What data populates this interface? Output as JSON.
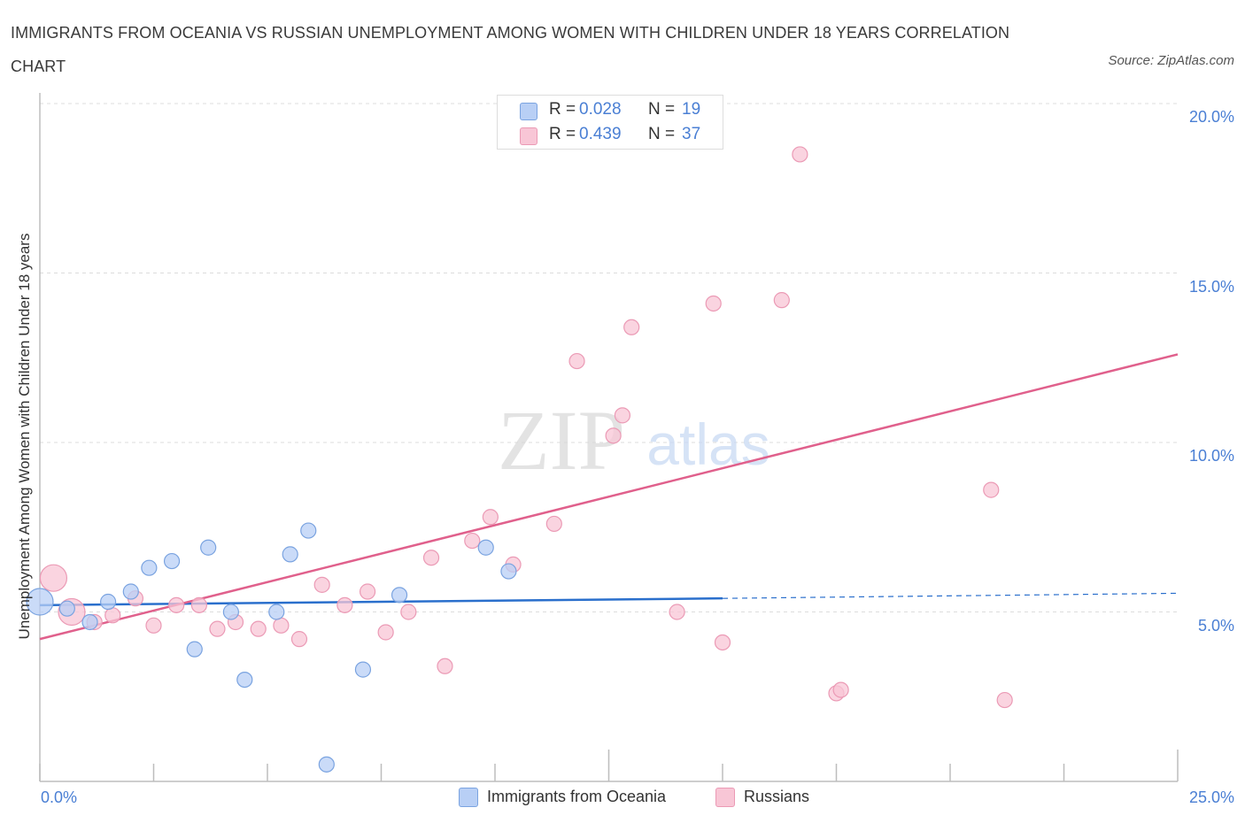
{
  "header": {
    "title": "IMMIGRANTS FROM OCEANIA VS RUSSIAN UNEMPLOYMENT AMONG WOMEN WITH CHILDREN UNDER 18 YEARS CORRELATION CHART",
    "source": "Source: ZipAtlas.com"
  },
  "watermark": {
    "zip": "ZIP",
    "atlas": "atlas"
  },
  "stats": {
    "rows": [
      {
        "r_label": "R =",
        "r_value": "0.028",
        "n_label": "N =",
        "n_value": "19"
      },
      {
        "r_label": "R =",
        "r_value": "0.439",
        "n_label": "N =",
        "n_value": "37"
      }
    ]
  },
  "legend": {
    "items": [
      "Immigrants from Oceania",
      "Russians"
    ]
  },
  "colors": {
    "blue_fill": "#b8cff5",
    "blue_stroke": "#7aa3e0",
    "blue_line": "#2a6fcc",
    "pink_fill": "#f8c6d6",
    "pink_stroke": "#eb9ab5",
    "pink_line": "#e0608c",
    "tick_text": "#4a7fd4"
  },
  "chart_data": {
    "type": "scatter",
    "title": "IMMIGRANTS FROM OCEANIA VS RUSSIAN UNEMPLOYMENT AMONG WOMEN WITH CHILDREN UNDER 18 YEARS CORRELATION CHART",
    "xlabel": "",
    "ylabel": "Unemployment Among Women with Children Under 18 years",
    "xlim": [
      0,
      25
    ],
    "ylim": [
      0,
      20
    ],
    "x_tick_labels": [
      "0.0%",
      "25.0%"
    ],
    "y_ticks": [
      5,
      10,
      15,
      20
    ],
    "y_tick_labels": [
      "5.0%",
      "10.0%",
      "15.0%",
      "20.0%"
    ],
    "grid": "horizontal dashed",
    "legend_position": "bottom-center",
    "series": [
      {
        "name": "Immigrants from Oceania",
        "color": "#b8cff5",
        "trend": {
          "x0": 0,
          "y0": 5.2,
          "x1": 15,
          "y1": 5.4,
          "dashed_to_x": 25,
          "dashed_to_y": 5.55
        },
        "points": [
          {
            "x": 0.0,
            "y": 5.3,
            "big": true
          },
          {
            "x": 0.6,
            "y": 5.1
          },
          {
            "x": 1.1,
            "y": 4.7
          },
          {
            "x": 1.5,
            "y": 5.3
          },
          {
            "x": 2.0,
            "y": 5.6
          },
          {
            "x": 2.4,
            "y": 6.3
          },
          {
            "x": 2.9,
            "y": 6.5
          },
          {
            "x": 3.4,
            "y": 3.9
          },
          {
            "x": 3.7,
            "y": 6.9
          },
          {
            "x": 4.2,
            "y": 5.0
          },
          {
            "x": 4.5,
            "y": 3.0
          },
          {
            "x": 5.2,
            "y": 5.0
          },
          {
            "x": 5.5,
            "y": 6.7
          },
          {
            "x": 5.9,
            "y": 7.4
          },
          {
            "x": 6.3,
            "y": 0.5
          },
          {
            "x": 7.1,
            "y": 3.3
          },
          {
            "x": 7.9,
            "y": 5.5
          },
          {
            "x": 9.8,
            "y": 6.9
          },
          {
            "x": 10.3,
            "y": 6.2
          }
        ]
      },
      {
        "name": "Russians",
        "color": "#f8c6d6",
        "trend": {
          "x0": 0,
          "y0": 4.2,
          "x1": 25,
          "y1": 12.6
        },
        "points": [
          {
            "x": 0.3,
            "y": 6.0,
            "big": true
          },
          {
            "x": 0.7,
            "y": 5.0,
            "big": true
          },
          {
            "x": 1.2,
            "y": 4.7
          },
          {
            "x": 1.6,
            "y": 4.9
          },
          {
            "x": 2.1,
            "y": 5.4
          },
          {
            "x": 2.5,
            "y": 4.6
          },
          {
            "x": 3.0,
            "y": 5.2
          },
          {
            "x": 3.5,
            "y": 5.2
          },
          {
            "x": 3.9,
            "y": 4.5
          },
          {
            "x": 4.3,
            "y": 4.7
          },
          {
            "x": 4.8,
            "y": 4.5
          },
          {
            "x": 5.3,
            "y": 4.6
          },
          {
            "x": 5.7,
            "y": 4.2
          },
          {
            "x": 6.2,
            "y": 5.8
          },
          {
            "x": 6.7,
            "y": 5.2
          },
          {
            "x": 7.2,
            "y": 5.6
          },
          {
            "x": 7.6,
            "y": 4.4
          },
          {
            "x": 8.1,
            "y": 5.0
          },
          {
            "x": 8.6,
            "y": 6.6
          },
          {
            "x": 8.9,
            "y": 3.4
          },
          {
            "x": 9.5,
            "y": 7.1
          },
          {
            "x": 9.9,
            "y": 7.8
          },
          {
            "x": 10.4,
            "y": 6.4
          },
          {
            "x": 11.3,
            "y": 7.6
          },
          {
            "x": 11.8,
            "y": 12.4
          },
          {
            "x": 12.6,
            "y": 10.2
          },
          {
            "x": 12.8,
            "y": 10.8
          },
          {
            "x": 13.0,
            "y": 13.4
          },
          {
            "x": 14.0,
            "y": 5.0
          },
          {
            "x": 14.8,
            "y": 14.1
          },
          {
            "x": 15.0,
            "y": 4.1
          },
          {
            "x": 16.3,
            "y": 14.2
          },
          {
            "x": 16.7,
            "y": 18.5
          },
          {
            "x": 17.5,
            "y": 2.6
          },
          {
            "x": 17.6,
            "y": 2.7
          },
          {
            "x": 20.9,
            "y": 8.6
          },
          {
            "x": 21.2,
            "y": 2.4
          }
        ]
      }
    ]
  }
}
